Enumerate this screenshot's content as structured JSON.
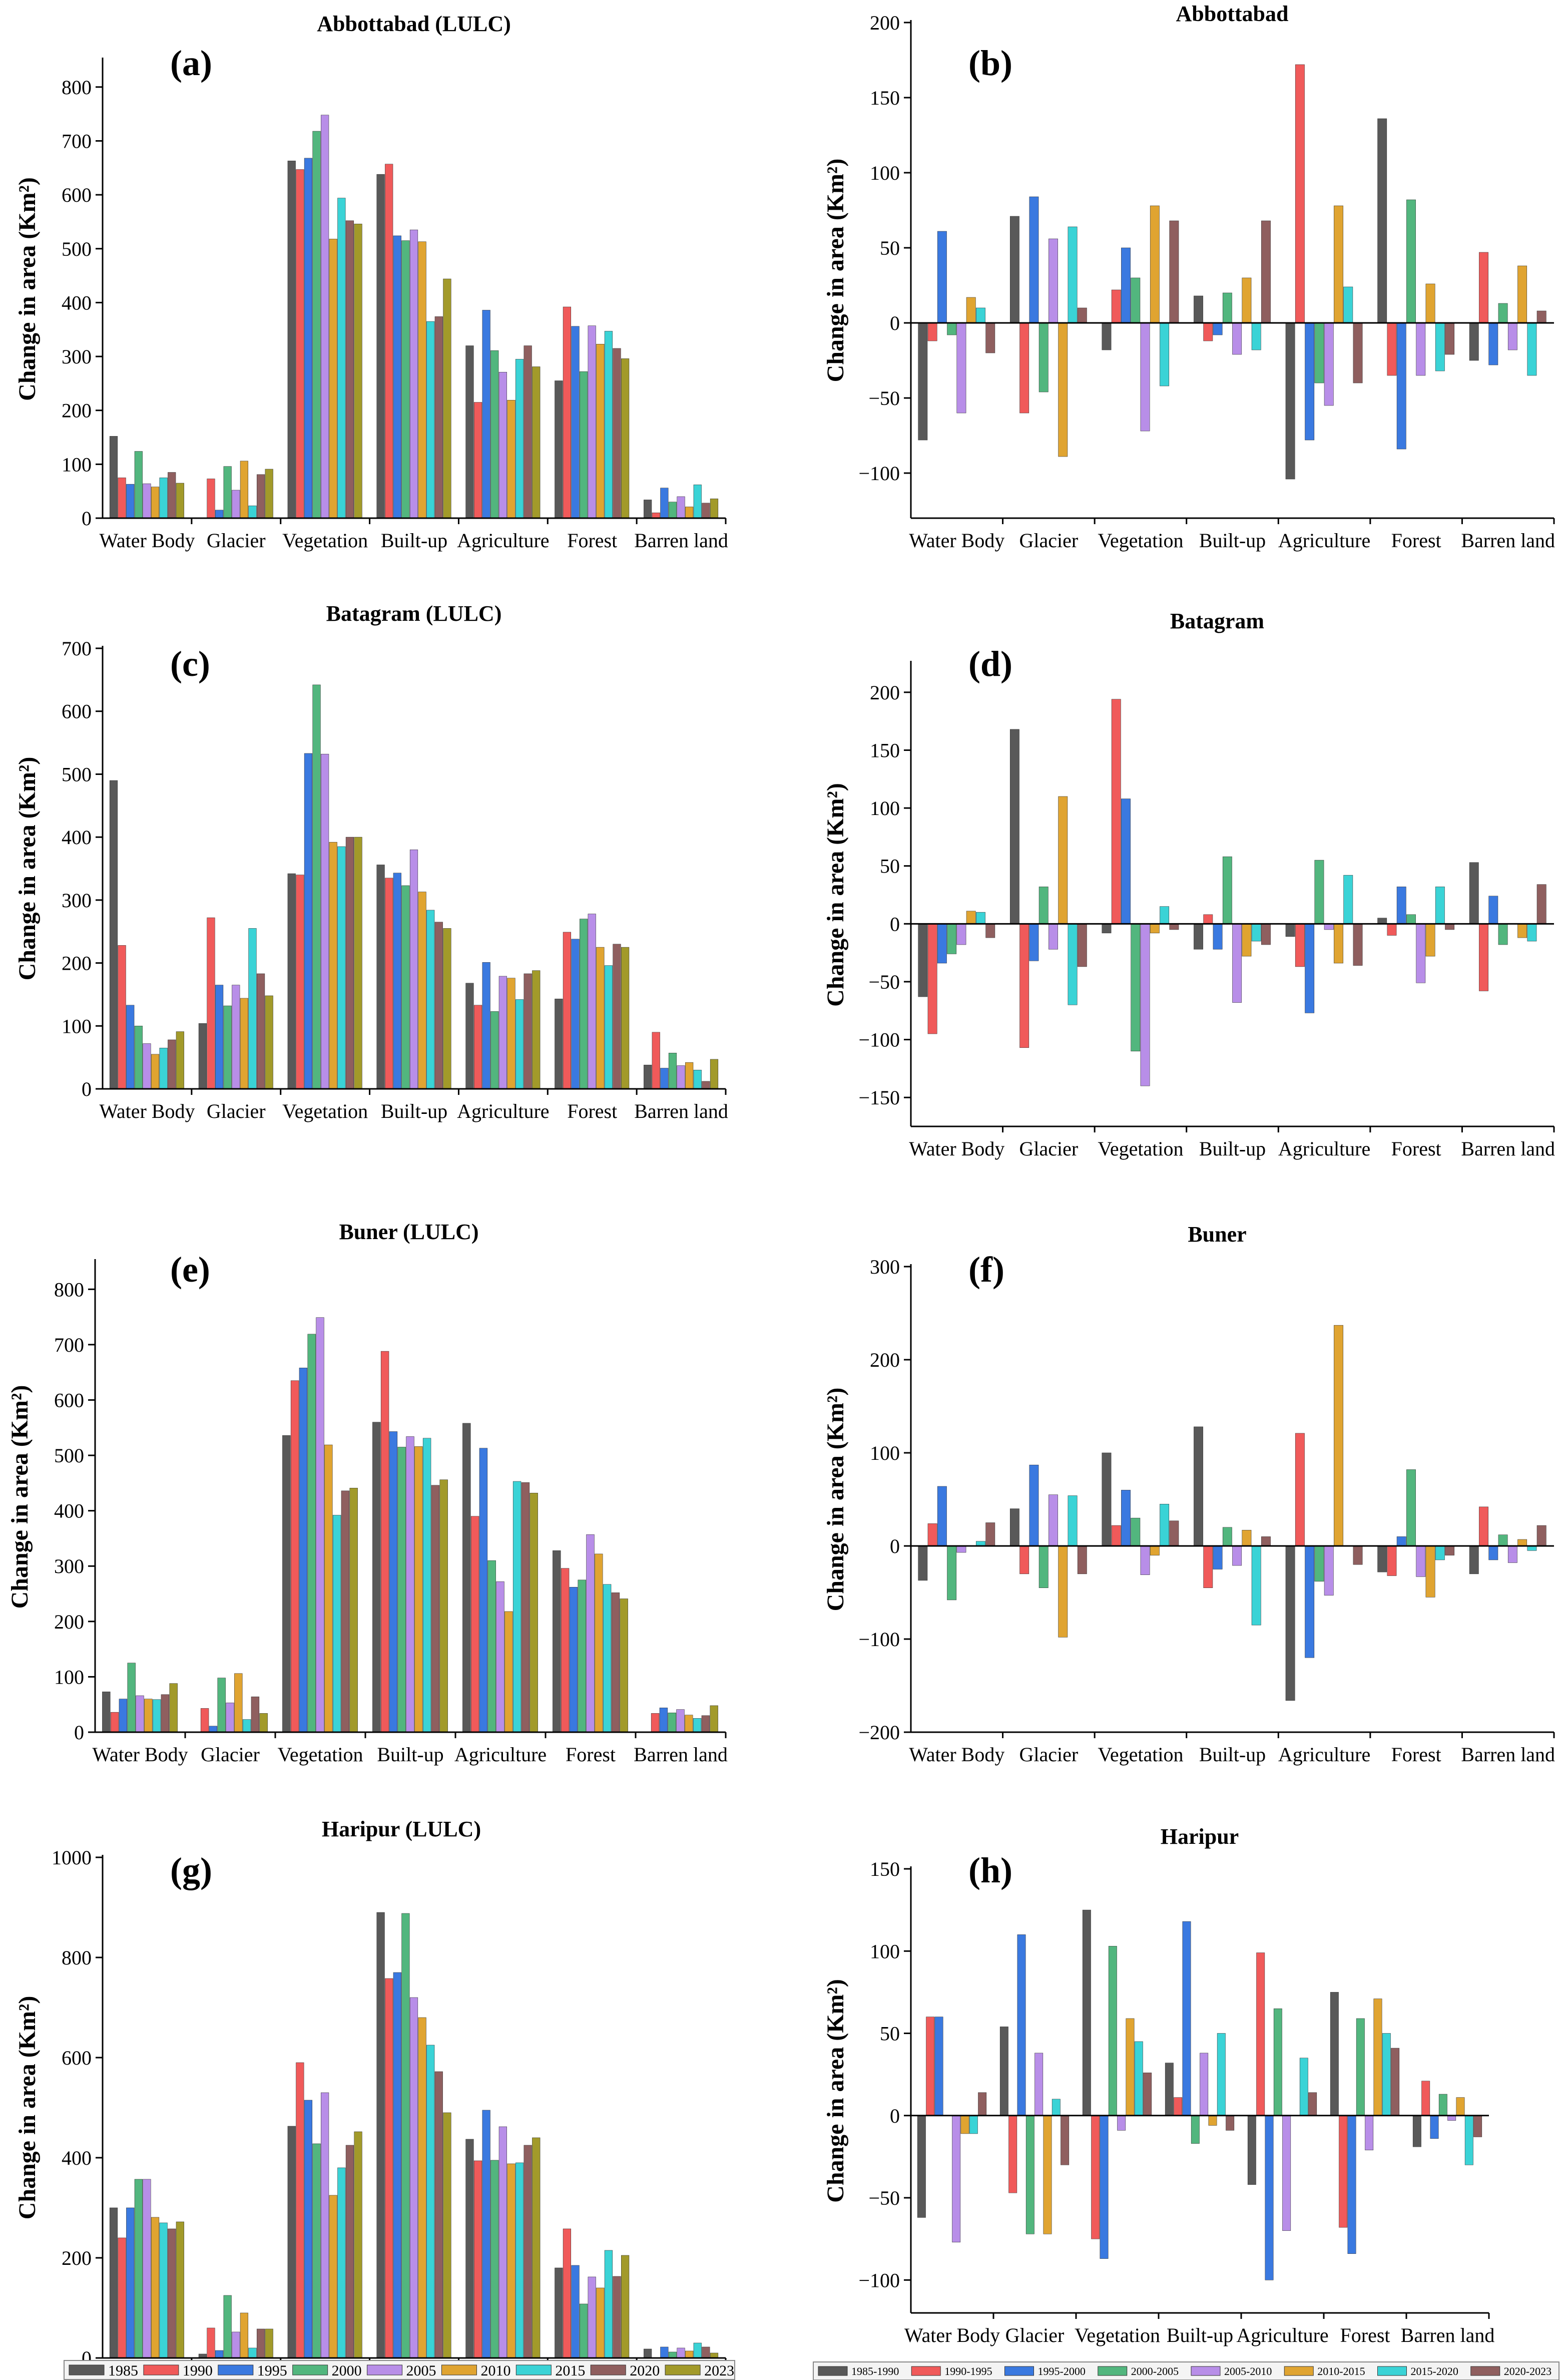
{
  "colors": [
    "#595959",
    "#f05a5a",
    "#3a79e0",
    "#52b67e",
    "#b88ee8",
    "#e0a431",
    "#3ad3d6",
    "#8f5f5f",
    "#a29a2a"
  ],
  "categories": [
    "Water Body",
    "Glacier",
    "Vegetation",
    "Built-up",
    "Agriculture",
    "Forest",
    "Barren land"
  ],
  "legend_left": [
    "1985",
    "1990",
    "1995",
    "2000",
    "2005",
    "2010",
    "2015",
    "2020",
    "2023"
  ],
  "legend_right": [
    "1985-1990",
    "1990-1995",
    "1995-2000",
    "2000-2005",
    "2005-2010",
    "2010-2015",
    "2015-2020",
    "2020-2023"
  ],
  "chart_data": [
    {
      "id": "a",
      "label": "(a)",
      "type": "bar",
      "title": "Abbottabad (LULC)",
      "ylabel": "Change in area (Km²)",
      "ylim": [
        0,
        850
      ],
      "yticks": [
        0,
        100,
        200,
        300,
        400,
        500,
        600,
        700,
        800
      ],
      "values": [
        [
          152,
          75,
          63,
          124,
          64,
          58,
          75,
          85,
          65
        ],
        [
          0,
          73,
          15,
          96,
          52,
          106,
          23,
          81,
          91
        ],
        [
          663,
          647,
          668,
          718,
          748,
          518,
          594,
          552,
          546
        ],
        [
          638,
          657,
          524,
          515,
          535,
          513,
          365,
          374,
          444
        ],
        [
          320,
          215,
          386,
          311,
          271,
          219,
          295,
          320,
          281
        ],
        [
          255,
          392,
          356,
          272,
          357,
          323,
          347,
          315,
          296
        ],
        [
          34,
          10,
          56,
          30,
          40,
          21,
          62,
          28,
          36
        ]
      ]
    },
    {
      "id": "b",
      "label": "(b)",
      "type": "bar",
      "title": "Abbottabad",
      "ylabel": "Change in area (Km²)",
      "ylim": [
        -130,
        200
      ],
      "yticks": [
        -100,
        -50,
        0,
        50,
        100,
        150,
        200
      ],
      "values": [
        [
          -78,
          -12,
          61,
          -8,
          -60,
          17,
          10,
          -20
        ],
        [
          71,
          -60,
          84,
          -46,
          56,
          -89,
          64,
          10
        ],
        [
          -18,
          22,
          50,
          30,
          -72,
          78,
          -42,
          68
        ],
        [
          18,
          -12,
          -8,
          20,
          -21,
          30,
          -18,
          68
        ],
        [
          -104,
          172,
          -78,
          -40,
          -55,
          78,
          24,
          -40
        ],
        [
          136,
          -35,
          -84,
          82,
          -35,
          26,
          -32,
          -21
        ],
        [
          -25,
          47,
          -28,
          13,
          -18,
          38,
          -35,
          8
        ]
      ]
    },
    {
      "id": "c",
      "label": "(c)",
      "type": "bar",
      "title": "Batagram (LULC)",
      "ylabel": "Change in area (Km²)",
      "ylim": [
        0,
        700
      ],
      "yticks": [
        0,
        100,
        200,
        300,
        400,
        500,
        600,
        700
      ],
      "values": [
        [
          490,
          228,
          133,
          100,
          72,
          55,
          65,
          78,
          91
        ],
        [
          104,
          272,
          165,
          132,
          165,
          144,
          255,
          183,
          148
        ],
        [
          342,
          340,
          533,
          642,
          532,
          392,
          385,
          400,
          400
        ],
        [
          356,
          335,
          343,
          323,
          380,
          313,
          284,
          265,
          255
        ],
        [
          168,
          133,
          201,
          123,
          179,
          176,
          142,
          183,
          188
        ],
        [
          143,
          249,
          238,
          270,
          278,
          225,
          196,
          230,
          225
        ],
        [
          38,
          90,
          33,
          57,
          37,
          42,
          30,
          12,
          47
        ]
      ]
    },
    {
      "id": "d",
      "label": "(d)",
      "type": "bar",
      "title": "Batagram",
      "ylabel": "Change in area (Km²)",
      "ylim": [
        -175,
        225
      ],
      "yticks": [
        -150,
        -100,
        -50,
        0,
        50,
        100,
        150,
        200
      ],
      "values": [
        [
          -63,
          -95,
          -34,
          -26,
          -18,
          11,
          10,
          -12
        ],
        [
          168,
          -107,
          -32,
          32,
          -22,
          110,
          -70,
          -37
        ],
        [
          -8,
          194,
          108,
          -110,
          -140,
          -8,
          15,
          -5
        ],
        [
          -22,
          8,
          -22,
          58,
          -68,
          -28,
          -15,
          -18
        ],
        [
          -11,
          -37,
          -77,
          55,
          -5,
          -34,
          42,
          -36
        ],
        [
          5,
          -10,
          32,
          8,
          -51,
          -28,
          32,
          -5
        ],
        [
          53,
          -58,
          24,
          -18,
          0,
          -12,
          -15,
          34
        ]
      ]
    },
    {
      "id": "e",
      "label": "(e)",
      "type": "bar",
      "title": "Buner (LULC)",
      "ylabel": "Change in area (Km²)",
      "ylim": [
        0,
        850
      ],
      "yticks": [
        0,
        100,
        200,
        300,
        400,
        500,
        600,
        700,
        800
      ],
      "values": [
        [
          73,
          36,
          60,
          125,
          66,
          60,
          59,
          68,
          88
        ],
        [
          0,
          43,
          11,
          98,
          53,
          106,
          23,
          64,
          34
        ],
        [
          536,
          635,
          658,
          719,
          749,
          519,
          392,
          436,
          441
        ],
        [
          560,
          688,
          543,
          515,
          534,
          516,
          531,
          446,
          456
        ],
        [
          558,
          390,
          513,
          310,
          272,
          218,
          453,
          451,
          432
        ],
        [
          328,
          296,
          262,
          275,
          357,
          322,
          267,
          252,
          241
        ],
        [
          0,
          34,
          44,
          35,
          41,
          31,
          25,
          30,
          48
        ]
      ]
    },
    {
      "id": "f",
      "label": "(f)",
      "type": "bar",
      "title": "Buner",
      "ylabel": "Change in area (Km²)",
      "ylim": [
        -200,
        300
      ],
      "yticks": [
        -200,
        -100,
        0,
        100,
        200,
        300
      ],
      "values": [
        [
          -37,
          24,
          64,
          -58,
          -7,
          0,
          5,
          25
        ],
        [
          40,
          -30,
          87,
          -45,
          55,
          -98,
          54,
          -30
        ],
        [
          100,
          22,
          60,
          30,
          -31,
          -10,
          45,
          27
        ],
        [
          128,
          -45,
          -25,
          20,
          -21,
          17,
          -85,
          10
        ],
        [
          -166,
          121,
          -120,
          -38,
          -53,
          237,
          0,
          -20
        ],
        [
          -28,
          -32,
          10,
          82,
          -33,
          -55,
          -15,
          -10
        ],
        [
          -30,
          42,
          -15,
          12,
          -18,
          7,
          -5,
          22
        ]
      ]
    },
    {
      "id": "g",
      "label": "(g)",
      "type": "bar",
      "title": "Haripur (LULC)",
      "ylabel": "Change in area (Km²)",
      "ylim": [
        0,
        1000
      ],
      "yticks": [
        0,
        200,
        400,
        600,
        800,
        1000
      ],
      "values": [
        [
          300,
          240,
          300,
          357,
          357,
          281,
          270,
          258,
          272
        ],
        [
          8,
          60,
          15,
          125,
          52,
          90,
          20,
          58,
          58
        ],
        [
          463,
          590,
          515,
          428,
          530,
          325,
          380,
          425,
          452
        ],
        [
          890,
          758,
          770,
          888,
          720,
          680,
          625,
          572,
          490
        ],
        [
          437,
          394,
          495,
          395,
          462,
          388,
          390,
          425,
          440
        ],
        [
          180,
          258,
          185,
          108,
          162,
          140,
          215,
          163,
          205
        ],
        [
          18,
          0,
          22,
          12,
          20,
          14,
          30,
          22,
          10
        ]
      ]
    },
    {
      "id": "h",
      "label": "(h)",
      "type": "bar",
      "title": "Haripur",
      "ylabel": "Change in area (Km²)",
      "ylim": [
        -120,
        150
      ],
      "yticks": [
        -100,
        -50,
        0,
        50,
        100,
        150
      ],
      "values": [
        [
          -62,
          60,
          60,
          0,
          -77,
          -11,
          -11,
          14
        ],
        [
          54,
          -47,
          110,
          -72,
          38,
          -72,
          10,
          -30
        ],
        [
          125,
          -75,
          -87,
          103,
          -9,
          59,
          45,
          26
        ],
        [
          32,
          11,
          118,
          -17,
          38,
          -6,
          50,
          -9
        ],
        [
          -42,
          99,
          -100,
          65,
          -70,
          0,
          35,
          14
        ],
        [
          75,
          -68,
          -84,
          59,
          -21,
          71,
          50,
          41
        ],
        [
          -19,
          21,
          -14,
          13,
          -3,
          11,
          -30,
          -13
        ]
      ]
    }
  ]
}
